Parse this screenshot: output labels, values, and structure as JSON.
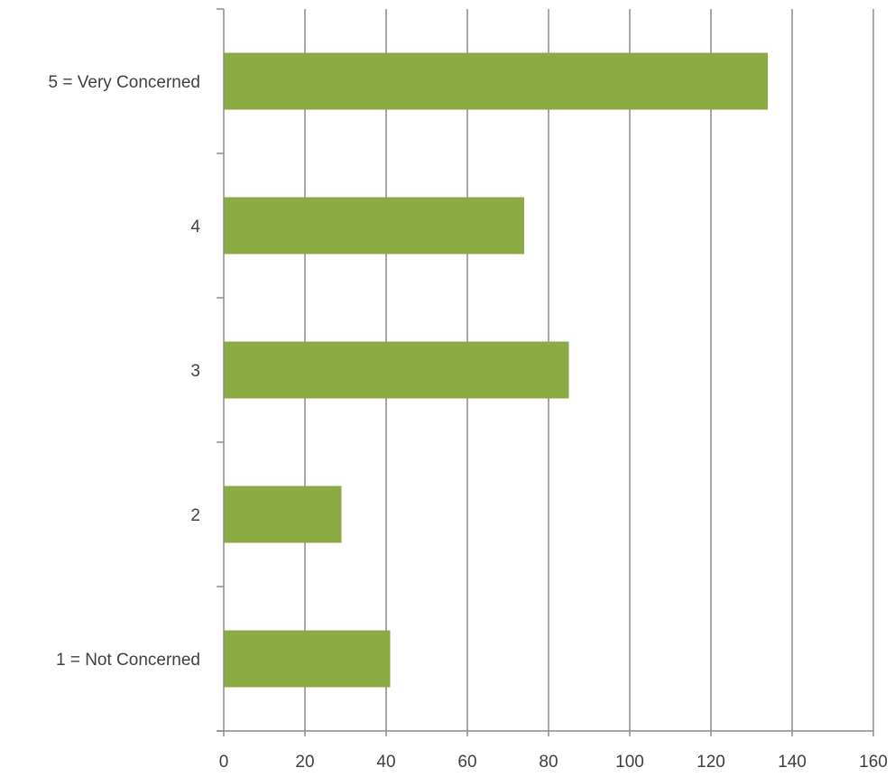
{
  "chart_data": {
    "type": "bar",
    "orientation": "horizontal",
    "title": "",
    "xlabel": "",
    "ylabel": "",
    "categories": [
      "5 = Very Concerned",
      "4",
      "3",
      "2",
      "1 = Not Concerned"
    ],
    "values": [
      134,
      74,
      85,
      29,
      41
    ],
    "xlim": [
      0,
      160
    ],
    "xticks": [
      0,
      20,
      40,
      60,
      80,
      100,
      120,
      140,
      160
    ],
    "grid": "vertical",
    "legend": "none",
    "colors": {
      "bar": "#8BAA44",
      "grid": "#8c8c8c",
      "axis": "#8c8c8c",
      "text": "#404040"
    }
  }
}
